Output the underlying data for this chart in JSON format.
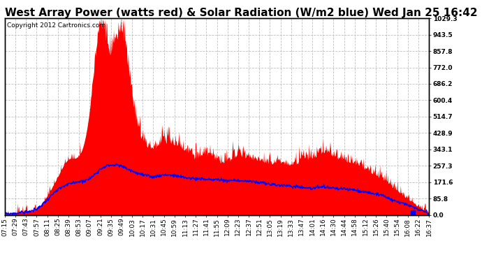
{
  "title": "West Array Power (watts red) & Solar Radiation (W/m2 blue) Wed Jan 25 16:42",
  "copyright": "Copyright 2012 Cartronics.com",
  "ylabel_right_ticks": [
    0.0,
    85.8,
    171.6,
    257.3,
    343.1,
    428.9,
    514.7,
    600.4,
    686.2,
    772.0,
    857.8,
    943.5,
    1029.3
  ],
  "ymax": 1029.3,
  "ymin": 0.0,
  "bg_color": "#ffffff",
  "plot_bg_color": "#ffffff",
  "grid_color": "#c0c0c0",
  "red_color": "#ff0000",
  "blue_color": "#0000ff",
  "title_fontsize": 11,
  "copyright_fontsize": 6.5,
  "tick_fontsize": 6.5,
  "x_labels": [
    "07:15",
    "07:29",
    "07:43",
    "07:57",
    "08:11",
    "08:25",
    "08:39",
    "08:53",
    "09:07",
    "09:21",
    "09:35",
    "09:49",
    "10:03",
    "10:17",
    "10:31",
    "10:45",
    "10:59",
    "11:13",
    "11:27",
    "11:41",
    "11:55",
    "12:09",
    "12:23",
    "12:37",
    "12:51",
    "13:05",
    "13:19",
    "13:33",
    "13:47",
    "14:01",
    "14:16",
    "14:30",
    "14:44",
    "14:58",
    "15:12",
    "15:26",
    "15:40",
    "15:54",
    "16:08",
    "16:22",
    "16:37"
  ],
  "power_values": [
    5,
    8,
    15,
    30,
    100,
    200,
    290,
    310,
    550,
    970,
    820,
    940,
    600,
    380,
    340,
    370,
    360,
    330,
    290,
    310,
    280,
    270,
    300,
    290,
    280,
    260,
    270,
    250,
    280,
    290,
    320,
    300,
    280,
    260,
    230,
    200,
    170,
    120,
    80,
    40,
    5
  ],
  "power_spikes": [
    0,
    0,
    0,
    0,
    0,
    0,
    0,
    0,
    0,
    50,
    80,
    60,
    40,
    30,
    20,
    40,
    30,
    20,
    30,
    20,
    30,
    20,
    30,
    20,
    20,
    20,
    20,
    20,
    30,
    20,
    30,
    20,
    20,
    20,
    20,
    20,
    20,
    10,
    10,
    5,
    0
  ],
  "solar_values": [
    5,
    8,
    15,
    30,
    80,
    130,
    160,
    175,
    190,
    240,
    260,
    255,
    230,
    210,
    200,
    210,
    205,
    195,
    190,
    185,
    185,
    180,
    180,
    175,
    170,
    160,
    155,
    150,
    145,
    140,
    145,
    140,
    135,
    130,
    120,
    110,
    90,
    70,
    50,
    30,
    5
  ]
}
